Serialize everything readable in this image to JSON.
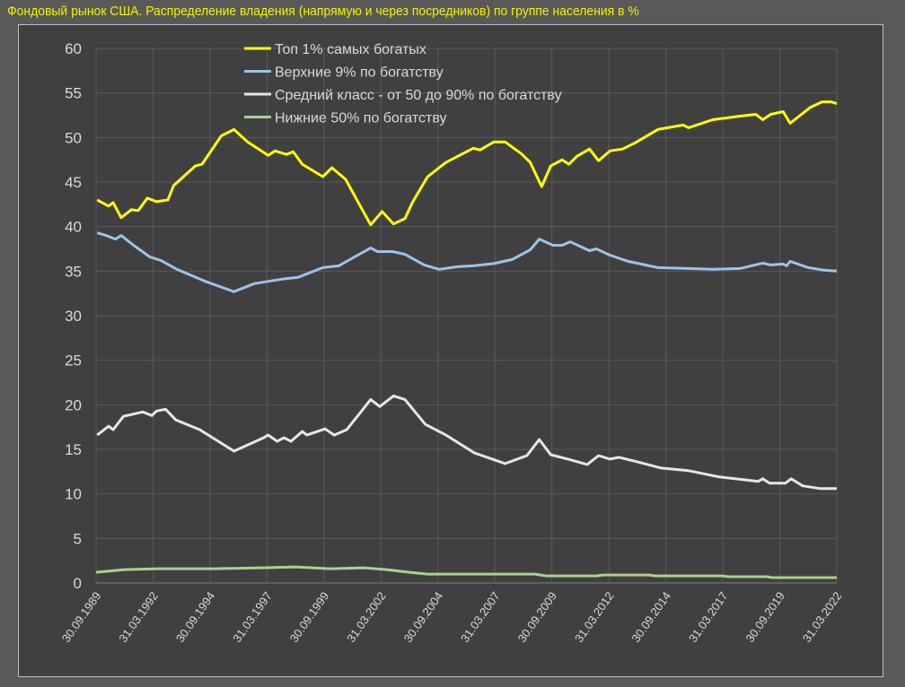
{
  "chart_data": {
    "type": "line",
    "title": "Фондовый рынок США. Распределение владения (напрямую и через посредников) по группе населения в %",
    "xlabel": "",
    "ylabel": "",
    "ylim": [
      0,
      60
    ],
    "yticks": [
      0,
      5,
      10,
      15,
      20,
      25,
      30,
      35,
      40,
      45,
      50,
      55,
      60
    ],
    "xlim": [
      1989.75,
      2022.25
    ],
    "xtick_labels": [
      "30.09.1989",
      "31.03.1992",
      "30.09.1994",
      "31.03.1997",
      "30.09.1999",
      "31.03.2002",
      "30.09.2004",
      "31.03.2007",
      "30.09.2009",
      "31.03.2012",
      "30.09.2014",
      "31.03.2017",
      "30.09.2019",
      "31.03.2022"
    ],
    "grid": true,
    "legend_position": "top-center",
    "series": [
      {
        "name": "Топ 1% самых богатых",
        "color": "#ffff00",
        "x": [
          1989.8,
          1990.3,
          1990.5,
          1990.85,
          1991.3,
          1991.6,
          1992.0,
          1992.4,
          1992.9,
          1993.15,
          1994.1,
          1994.4,
          1995.25,
          1995.8,
          1996.4,
          1997.3,
          1997.6,
          1998.1,
          1998.4,
          1998.8,
          1999.7,
          2000.1,
          2000.7,
          2001.3,
          2001.8,
          2002.3,
          2002.8,
          2003.3,
          2003.65,
          2004.3,
          2005.1,
          2006.3,
          2006.6,
          2007.2,
          2007.7,
          2008.4,
          2008.8,
          2009.3,
          2009.7,
          2010.2,
          2010.5,
          2010.85,
          2011.4,
          2011.8,
          2012.3,
          2012.85,
          2013.4,
          2014.4,
          2015.5,
          2015.75,
          2016.8,
          2018.0,
          2018.7,
          2019.0,
          2019.35,
          2019.9,
          2020.2,
          2020.6,
          2021.1,
          2021.6,
          2022.0,
          2022.25
        ],
        "y": [
          43.0,
          42.3,
          42.7,
          41.0,
          41.9,
          41.8,
          43.2,
          42.8,
          43.0,
          44.6,
          46.8,
          47.0,
          50.2,
          50.9,
          49.5,
          48.0,
          48.5,
          48.1,
          48.4,
          47.0,
          45.6,
          46.6,
          45.3,
          42.5,
          40.2,
          41.7,
          40.3,
          40.9,
          42.8,
          45.6,
          47.2,
          48.8,
          48.6,
          49.5,
          49.5,
          48.2,
          47.2,
          44.5,
          46.8,
          47.5,
          47.0,
          47.9,
          48.7,
          47.4,
          48.5,
          48.7,
          49.4,
          50.9,
          51.4,
          51.1,
          52.0,
          52.4,
          52.6,
          52.0,
          52.6,
          52.9,
          51.6,
          52.4,
          53.4,
          54.0,
          54.0,
          53.8
        ]
      },
      {
        "name": "Верхние 9% по богатству",
        "color": "#9dc3e6",
        "x": [
          1989.8,
          1990.2,
          1990.6,
          1990.85,
          1991.4,
          1992.1,
          1992.6,
          1993.3,
          1994.5,
          1995.8,
          1996.7,
          1997.9,
          1998.6,
          1999.7,
          2000.4,
          2001.3,
          2001.8,
          2002.1,
          2002.75,
          2003.3,
          2004.15,
          2004.8,
          2005.6,
          2006.3,
          2007.2,
          2008.0,
          2008.8,
          2009.2,
          2009.8,
          2010.2,
          2010.55,
          2011.4,
          2011.7,
          2012.3,
          2013.1,
          2014.4,
          2015.75,
          2016.8,
          2018.0,
          2019.0,
          2019.35,
          2019.9,
          2020.05,
          2020.2,
          2021.0,
          2021.7,
          2022.25
        ],
        "y": [
          39.3,
          39.0,
          38.6,
          39.0,
          37.9,
          36.6,
          36.2,
          35.2,
          33.9,
          32.7,
          33.6,
          34.1,
          34.3,
          35.4,
          35.6,
          36.9,
          37.6,
          37.2,
          37.2,
          36.9,
          35.7,
          35.2,
          35.5,
          35.6,
          35.85,
          36.3,
          37.4,
          38.6,
          37.9,
          37.9,
          38.3,
          37.3,
          37.5,
          36.8,
          36.1,
          35.4,
          35.3,
          35.2,
          35.3,
          35.9,
          35.7,
          35.8,
          35.6,
          36.1,
          35.4,
          35.1,
          35.0
        ]
      },
      {
        "name": "Средний класс - от 50 до 90% по богатству",
        "color": "#e6e6e6",
        "x": [
          1989.8,
          1990.3,
          1990.5,
          1990.95,
          1991.8,
          1992.2,
          1992.4,
          1992.8,
          1993.25,
          1994.3,
          1995.8,
          1997.1,
          1997.3,
          1997.7,
          1998.0,
          1998.3,
          1998.8,
          1999.0,
          1999.8,
          2000.2,
          2000.75,
          2001.4,
          2001.8,
          2002.2,
          2002.8,
          2003.3,
          2004.2,
          2005.1,
          2006.35,
          2007.7,
          2008.65,
          2009.2,
          2009.7,
          2010.6,
          2011.3,
          2011.8,
          2012.3,
          2012.7,
          2013.5,
          2014.55,
          2015.75,
          2017.1,
          2018.8,
          2019.0,
          2019.3,
          2020.0,
          2020.25,
          2020.75,
          2021.5,
          2022.25
        ],
        "y": [
          16.6,
          17.6,
          17.2,
          18.7,
          19.2,
          18.8,
          19.3,
          19.5,
          18.3,
          17.2,
          14.8,
          16.3,
          16.6,
          15.9,
          16.3,
          15.9,
          17.0,
          16.6,
          17.3,
          16.6,
          17.2,
          19.3,
          20.6,
          19.8,
          21.0,
          20.6,
          17.8,
          16.6,
          14.6,
          13.4,
          14.3,
          16.1,
          14.4,
          13.8,
          13.3,
          14.3,
          13.9,
          14.1,
          13.6,
          12.9,
          12.6,
          11.9,
          11.4,
          11.7,
          11.2,
          11.2,
          11.7,
          10.9,
          10.6,
          10.6
        ]
      },
      {
        "name": "Нижние 50% по богатству",
        "color": "#a9d18e",
        "x": [
          1989.75,
          1991.0,
          1992.5,
          1995.0,
          1997.0,
          1998.5,
          2000.0,
          2001.5,
          2002.5,
          2003.5,
          2004.3,
          2009.0,
          2009.5,
          2011.7,
          2012.0,
          2014.0,
          2014.3,
          2017.2,
          2017.5,
          2019.2,
          2019.4,
          2022.25
        ],
        "y": [
          1.2,
          1.5,
          1.6,
          1.6,
          1.7,
          1.8,
          1.6,
          1.7,
          1.5,
          1.2,
          1.0,
          1.0,
          0.8,
          0.8,
          0.9,
          0.9,
          0.8,
          0.8,
          0.7,
          0.7,
          0.6,
          0.6
        ]
      }
    ]
  }
}
